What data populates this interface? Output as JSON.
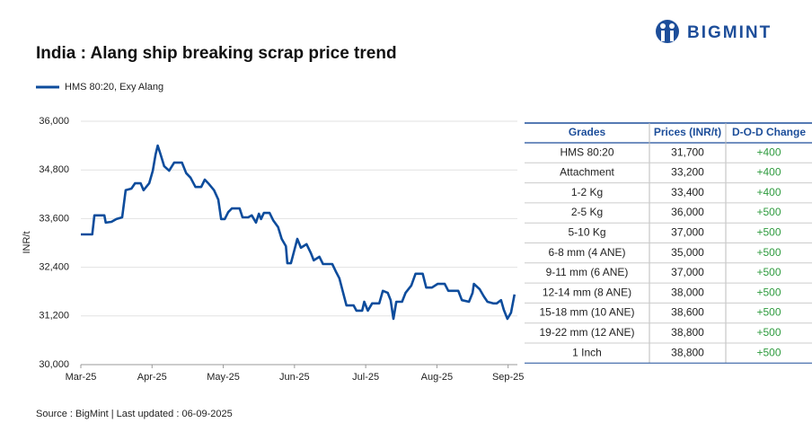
{
  "logo": "BIGMINT",
  "source": "Source : BigMint | Last updated : 06-09-2025",
  "chart_data": {
    "type": "line",
    "title": "India : Alang ship breaking scrap price trend",
    "ylabel": "INR/t",
    "x": [
      0,
      0.16,
      0.19,
      0.33,
      0.35,
      0.43,
      0.5,
      0.58,
      0.63,
      0.71,
      0.76,
      0.84,
      0.88,
      0.96,
      1.01,
      1.05,
      1.08,
      1.12,
      1.17,
      1.24,
      1.31,
      1.42,
      1.48,
      1.54,
      1.61,
      1.69,
      1.74,
      1.79,
      1.87,
      1.93,
      1.97,
      2.02,
      2.07,
      2.12,
      2.23,
      2.27,
      2.35,
      2.4,
      2.46,
      2.5,
      2.53,
      2.57,
      2.65,
      2.7,
      2.77,
      2.82,
      2.88,
      2.9,
      2.95,
      3.0,
      3.04,
      3.09,
      3.17,
      3.23,
      3.27,
      3.35,
      3.4,
      3.53,
      3.58,
      3.63,
      3.68,
      3.73,
      3.83,
      3.87,
      3.95,
      3.98,
      4.03,
      4.09,
      4.19,
      4.24,
      4.31,
      4.35,
      4.39,
      4.43,
      4.51,
      4.56,
      4.64,
      4.7,
      4.8,
      4.85,
      4.93,
      5.01,
      5.11,
      5.16,
      5.3,
      5.35,
      5.45,
      5.5,
      5.52,
      5.6,
      5.66,
      5.71,
      5.79,
      5.84,
      5.9,
      5.94,
      5.99,
      6.04,
      6.09
    ],
    "series": [
      {
        "name": "HMS 80:20, Exy Alang",
        "color": "#0d4c9c",
        "values": [
          33210,
          33210,
          33680,
          33680,
          33500,
          33520,
          33590,
          33630,
          34300,
          34340,
          34470,
          34470,
          34300,
          34470,
          34780,
          35180,
          35400,
          35180,
          34890,
          34780,
          34980,
          34980,
          34720,
          34610,
          34380,
          34380,
          34560,
          34470,
          34300,
          34070,
          33590,
          33590,
          33760,
          33850,
          33850,
          33630,
          33630,
          33680,
          33500,
          33720,
          33590,
          33740,
          33740,
          33560,
          33390,
          33100,
          32920,
          32500,
          32500,
          32830,
          33100,
          32880,
          32970,
          32750,
          32570,
          32660,
          32480,
          32480,
          32300,
          32130,
          31790,
          31460,
          31460,
          31330,
          31330,
          31550,
          31330,
          31510,
          31510,
          31820,
          31770,
          31590,
          31130,
          31550,
          31550,
          31770,
          31950,
          32240,
          32240,
          31900,
          31900,
          31990,
          31990,
          31820,
          31820,
          31590,
          31550,
          31770,
          31990,
          31860,
          31680,
          31550,
          31510,
          31510,
          31590,
          31350,
          31130,
          31280,
          31730
        ]
      }
    ],
    "xlim": [
      0,
      6.13
    ],
    "xticks": [
      {
        "value": 0,
        "label": "Mar-25"
      },
      {
        "value": 1,
        "label": "Apr-25"
      },
      {
        "value": 2,
        "label": "May-25"
      },
      {
        "value": 3,
        "label": "Jun-25"
      },
      {
        "value": 4,
        "label": "Jul-25"
      },
      {
        "value": 5,
        "label": "Aug-25"
      },
      {
        "value": 6,
        "label": "Sep-25"
      }
    ],
    "ylim": [
      30000,
      36000
    ],
    "yticks": [
      {
        "value": 30000,
        "label": "30,000"
      },
      {
        "value": 31200,
        "label": "31,200"
      },
      {
        "value": 32400,
        "label": "32,400"
      },
      {
        "value": 33600,
        "label": "33,600"
      },
      {
        "value": 34800,
        "label": "34,800"
      },
      {
        "value": 36000,
        "label": "36,000"
      }
    ],
    "grid": true
  },
  "table": {
    "columns": [
      "Grades",
      "Prices (INR/t)",
      "D-O-D Change"
    ],
    "rows": [
      [
        "HMS 80:20",
        "31,700",
        "+400"
      ],
      [
        "Attachment",
        "33,200",
        "+400"
      ],
      [
        "1-2 Kg",
        "33,400",
        "+400"
      ],
      [
        "2-5 Kg",
        "36,000",
        "+500"
      ],
      [
        "5-10 Kg",
        "37,000",
        "+500"
      ],
      [
        "6-8 mm (4 ANE)",
        "35,000",
        "+500"
      ],
      [
        "9-11 mm (6 ANE)",
        "37,000",
        "+500"
      ],
      [
        "12-14 mm (8 ANE)",
        "38,000",
        "+500"
      ],
      [
        "15-18 mm (10 ANE)",
        "38,600",
        "+500"
      ],
      [
        "19-22 mm (12 ANE)",
        "38,800",
        "+500"
      ],
      [
        "1 Inch",
        "38,800",
        "+500"
      ]
    ]
  }
}
